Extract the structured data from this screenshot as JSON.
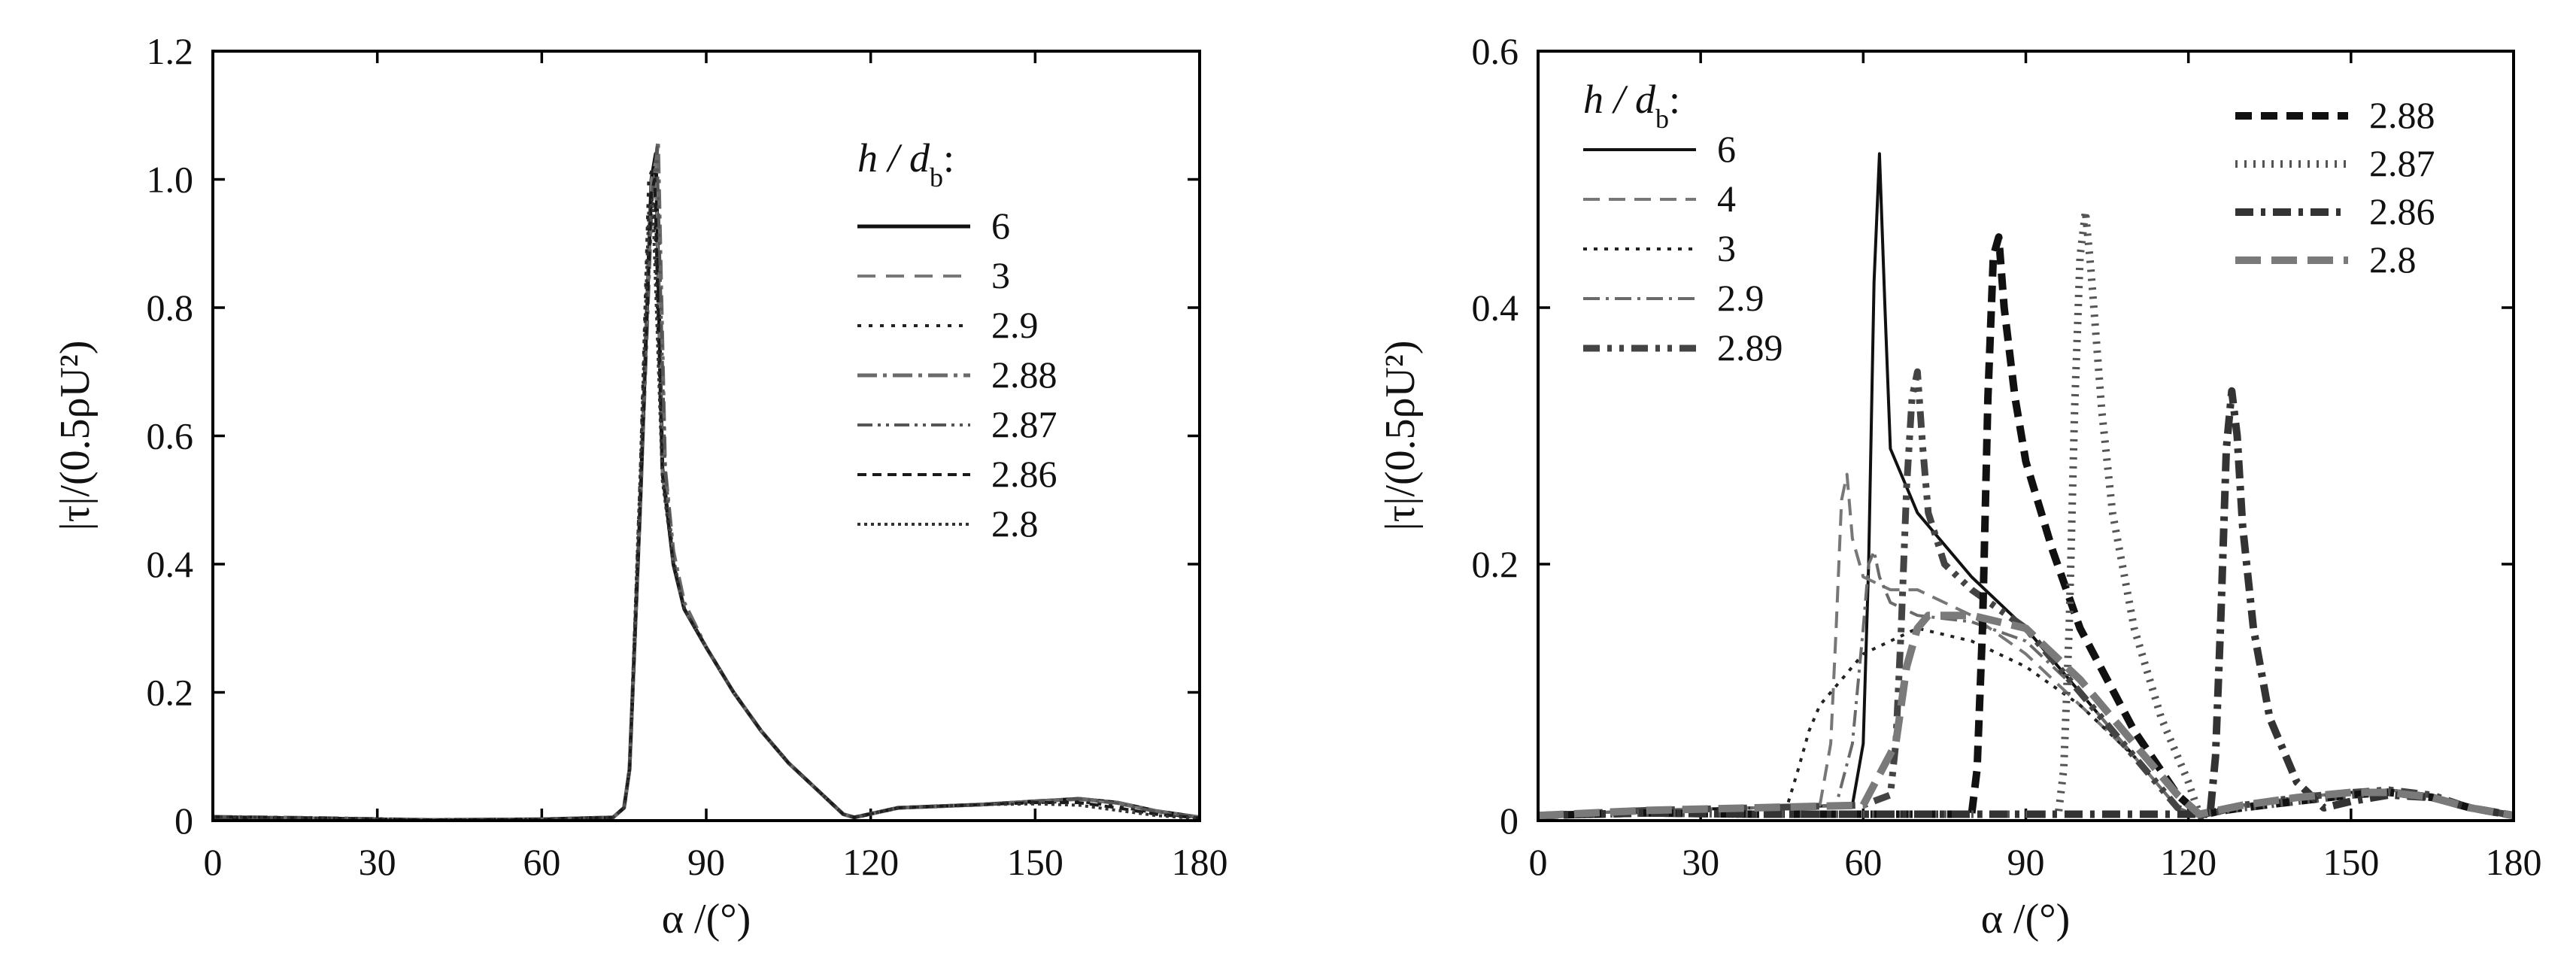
{
  "chart_data": [
    {
      "type": "line",
      "panel": "left",
      "xlabel": "α /(°)",
      "ylabel": "|τ|/(0.5ρU²)",
      "xlim": [
        0,
        180
      ],
      "ylim": [
        0,
        1.2
      ],
      "xticks": [
        0,
        30,
        60,
        90,
        120,
        150,
        180
      ],
      "yticks": [
        0,
        0.2,
        0.4,
        0.6,
        0.8,
        1.0,
        1.2
      ],
      "xtick_labels": [
        "0",
        "30",
        "60",
        "90",
        "120",
        "150",
        "180"
      ],
      "ytick_labels": [
        "0",
        "0.2",
        "0.4",
        "0.6",
        "0.8",
        "1.0",
        "1.2"
      ],
      "legend_title": "h / d",
      "legend_title_sub": "b",
      "legend_title_suffix": ":",
      "legend_position": "right",
      "series": [
        {
          "name": "6",
          "color": "#111111",
          "dash": "",
          "width": 5,
          "x": [
            0,
            20,
            40,
            60,
            73,
            75,
            76,
            78,
            80,
            80.8,
            82,
            84,
            86,
            90,
            95,
            100,
            105,
            110,
            115,
            117,
            125,
            140,
            150,
            158,
            165,
            172,
            180
          ],
          "y": [
            0.005,
            0.003,
            0.001,
            0.002,
            0.005,
            0.02,
            0.08,
            0.5,
            1.0,
            1.04,
            0.55,
            0.4,
            0.33,
            0.27,
            0.2,
            0.14,
            0.09,
            0.05,
            0.01,
            0.005,
            0.02,
            0.025,
            0.03,
            0.034,
            0.028,
            0.015,
            0.005
          ]
        },
        {
          "name": "3",
          "color": "#777777",
          "dash": "24,14",
          "width": 4,
          "x": [
            0,
            20,
            40,
            60,
            73,
            75,
            76,
            78,
            80,
            80.8,
            82,
            84,
            86,
            90,
            95,
            100,
            105,
            110,
            115,
            117,
            125,
            140,
            150,
            158,
            165,
            172,
            180
          ],
          "y": [
            0.006,
            0.004,
            0.001,
            0.002,
            0.005,
            0.02,
            0.08,
            0.52,
            1.0,
            1.03,
            0.54,
            0.4,
            0.33,
            0.27,
            0.2,
            0.14,
            0.09,
            0.05,
            0.01,
            0.005,
            0.02,
            0.025,
            0.03,
            0.033,
            0.027,
            0.014,
            0.005
          ]
        },
        {
          "name": "2.9",
          "color": "#222222",
          "dash": "5,10",
          "width": 4,
          "x": [
            0,
            20,
            40,
            60,
            73,
            75,
            76,
            78,
            79.5,
            80.3,
            82,
            84,
            86,
            90,
            95,
            100,
            105,
            110,
            115,
            117,
            125,
            140,
            150,
            158,
            165,
            172,
            180
          ],
          "y": [
            0.006,
            0.004,
            0.001,
            0.002,
            0.005,
            0.02,
            0.08,
            0.55,
            1.0,
            1.02,
            0.54,
            0.4,
            0.33,
            0.27,
            0.2,
            0.14,
            0.09,
            0.05,
            0.01,
            0.005,
            0.02,
            0.025,
            0.028,
            0.03,
            0.022,
            0.012,
            0.004
          ]
        },
        {
          "name": "2.88",
          "color": "#6a6a6a",
          "dash": "26,8,5,8",
          "width": 5,
          "x": [
            0,
            20,
            40,
            60,
            73,
            75,
            76,
            78,
            80,
            81.2,
            82.5,
            84,
            86,
            90,
            95,
            100,
            105,
            110,
            115,
            117,
            125,
            140,
            150,
            158,
            165,
            172,
            180
          ],
          "y": [
            0.006,
            0.004,
            0.001,
            0.002,
            0.005,
            0.02,
            0.08,
            0.5,
            0.95,
            1.06,
            0.55,
            0.42,
            0.34,
            0.27,
            0.2,
            0.14,
            0.09,
            0.05,
            0.01,
            0.005,
            0.02,
            0.025,
            0.03,
            0.034,
            0.028,
            0.015,
            0.005
          ]
        },
        {
          "name": "2.87",
          "color": "#555555",
          "dash": "20,7,4,7,4,7",
          "width": 4,
          "x": [
            0,
            20,
            40,
            60,
            73,
            75,
            76,
            78,
            80,
            81,
            82.5,
            84,
            86,
            90,
            95,
            100,
            105,
            110,
            115,
            117,
            125,
            140,
            150,
            158,
            165,
            172,
            180
          ],
          "y": [
            0.006,
            0.004,
            0.001,
            0.002,
            0.005,
            0.02,
            0.08,
            0.5,
            0.96,
            1.05,
            0.55,
            0.41,
            0.33,
            0.27,
            0.2,
            0.14,
            0.09,
            0.05,
            0.01,
            0.005,
            0.02,
            0.025,
            0.03,
            0.034,
            0.027,
            0.014,
            0.005
          ]
        },
        {
          "name": "2.86",
          "color": "#1a1a1a",
          "dash": "12,8",
          "width": 4,
          "x": [
            0,
            20,
            40,
            60,
            73,
            75,
            76,
            78,
            80,
            80.6,
            82,
            84,
            86,
            90,
            95,
            100,
            105,
            110,
            115,
            117,
            125,
            140,
            150,
            158,
            165,
            172,
            180
          ],
          "y": [
            0.006,
            0.004,
            0.001,
            0.002,
            0.005,
            0.02,
            0.08,
            0.5,
            0.98,
            1.0,
            0.54,
            0.4,
            0.33,
            0.27,
            0.2,
            0.14,
            0.09,
            0.05,
            0.01,
            0.005,
            0.02,
            0.025,
            0.028,
            0.028,
            0.02,
            0.01,
            0.004
          ]
        },
        {
          "name": "2.8",
          "color": "#333333",
          "dash": "4,5",
          "width": 4,
          "x": [
            0,
            20,
            40,
            60,
            73,
            75,
            76,
            78,
            79.5,
            80.2,
            82,
            84,
            86,
            90,
            95,
            100,
            105,
            110,
            115,
            117,
            125,
            140,
            150,
            158,
            165,
            172,
            180
          ],
          "y": [
            0.006,
            0.004,
            0.001,
            0.002,
            0.005,
            0.02,
            0.08,
            0.55,
            0.95,
            0.97,
            0.53,
            0.4,
            0.33,
            0.27,
            0.2,
            0.14,
            0.09,
            0.05,
            0.01,
            0.005,
            0.02,
            0.025,
            0.026,
            0.024,
            0.016,
            0.008,
            0.003
          ]
        }
      ]
    },
    {
      "type": "line",
      "panel": "right",
      "xlabel": "α /(°)",
      "ylabel": "|τ|/(0.5ρU²)",
      "xlim": [
        0,
        180
      ],
      "ylim": [
        0,
        0.6
      ],
      "xticks": [
        0,
        30,
        60,
        90,
        120,
        150,
        180
      ],
      "yticks": [
        0,
        0.2,
        0.4,
        0.6
      ],
      "xtick_labels": [
        "0",
        "30",
        "60",
        "90",
        "120",
        "150",
        "180"
      ],
      "ytick_labels": [
        "0",
        "0.2",
        "0.4",
        "0.6"
      ],
      "legend_title": "h / d",
      "legend_title_sub": "b",
      "legend_title_suffix": ":",
      "legend_position": "top-left and top-right",
      "series": [
        {
          "name": "6",
          "color": "#111111",
          "dash": "",
          "width": 4,
          "x": [
            0,
            20,
            40,
            58,
            60,
            61,
            62,
            63,
            64,
            65,
            70,
            80,
            90,
            100,
            110,
            118,
            122,
            130,
            140,
            150,
            157,
            165,
            172,
            180
          ],
          "y": [
            0.004,
            0.008,
            0.01,
            0.012,
            0.06,
            0.2,
            0.42,
            0.52,
            0.4,
            0.29,
            0.24,
            0.19,
            0.15,
            0.1,
            0.05,
            0.01,
            0.003,
            0.012,
            0.018,
            0.022,
            0.024,
            0.02,
            0.01,
            0.004
          ]
        },
        {
          "name": "4",
          "color": "#777777",
          "dash": "22,12",
          "width": 4,
          "x": [
            0,
            20,
            40,
            52,
            54,
            55,
            56,
            57,
            58,
            60,
            65,
            70,
            80,
            90,
            100,
            110,
            118,
            122,
            130,
            140,
            150,
            157,
            165,
            172,
            180
          ],
          "y": [
            0.004,
            0.008,
            0.01,
            0.012,
            0.06,
            0.15,
            0.25,
            0.27,
            0.22,
            0.19,
            0.18,
            0.18,
            0.16,
            0.13,
            0.09,
            0.05,
            0.01,
            0.003,
            0.012,
            0.018,
            0.022,
            0.024,
            0.02,
            0.01,
            0.004
          ]
        },
        {
          "name": "3",
          "color": "#222222",
          "dash": "5,9",
          "width": 4,
          "x": [
            0,
            20,
            40,
            46,
            48,
            50,
            52,
            54,
            56,
            60,
            65,
            70,
            80,
            90,
            100,
            110,
            118,
            122,
            130,
            140,
            150,
            157,
            165,
            172,
            180
          ],
          "y": [
            0.004,
            0.008,
            0.01,
            0.012,
            0.04,
            0.07,
            0.09,
            0.1,
            0.11,
            0.13,
            0.14,
            0.15,
            0.14,
            0.12,
            0.09,
            0.05,
            0.01,
            0.003,
            0.012,
            0.018,
            0.022,
            0.022,
            0.018,
            0.01,
            0.004
          ]
        },
        {
          "name": "2.9",
          "color": "#6a6a6a",
          "dash": "22,8,4,8",
          "width": 4,
          "x": [
            0,
            20,
            40,
            55,
            58,
            60,
            61,
            62,
            63,
            65,
            70,
            80,
            90,
            100,
            110,
            118,
            122,
            130,
            140,
            150,
            157,
            165,
            172,
            180
          ],
          "y": [
            0.004,
            0.008,
            0.01,
            0.012,
            0.06,
            0.15,
            0.2,
            0.21,
            0.19,
            0.17,
            0.16,
            0.155,
            0.14,
            0.1,
            0.05,
            0.01,
            0.003,
            0.012,
            0.018,
            0.022,
            0.024,
            0.02,
            0.01,
            0.004
          ]
        },
        {
          "name": "2.89",
          "color": "#444444",
          "dash": "22,10,6,10,6,10",
          "width": 9,
          "x": [
            0,
            20,
            40,
            60,
            65,
            66,
            67,
            68,
            69,
            70,
            71,
            72,
            75,
            80,
            90,
            100,
            110,
            118,
            122,
            130,
            140,
            150,
            157,
            165,
            172,
            180
          ],
          "y": [
            0.004,
            0.008,
            0.01,
            0.012,
            0.02,
            0.06,
            0.15,
            0.26,
            0.33,
            0.35,
            0.29,
            0.24,
            0.2,
            0.18,
            0.15,
            0.1,
            0.05,
            0.01,
            0.003,
            0.012,
            0.018,
            0.022,
            0.024,
            0.02,
            0.01,
            0.004
          ]
        },
        {
          "name": "2.88",
          "color": "#111111",
          "dash": "22,12",
          "width": 10,
          "x": [
            0,
            20,
            40,
            60,
            80,
            81,
            82,
            83,
            84,
            85,
            86,
            88,
            90,
            95,
            100,
            110,
            118,
            122,
            130,
            140,
            150,
            157,
            165,
            172,
            180
          ],
          "y": [
            0.004,
            0.006,
            0.005,
            0.005,
            0.005,
            0.04,
            0.15,
            0.33,
            0.44,
            0.455,
            0.4,
            0.33,
            0.28,
            0.21,
            0.15,
            0.07,
            0.02,
            0.005,
            0.01,
            0.015,
            0.02,
            0.022,
            0.018,
            0.01,
            0.004
          ]
        },
        {
          "name": "2.87",
          "color": "#555555",
          "dash": "3,9",
          "width": 10,
          "x": [
            0,
            20,
            40,
            60,
            80,
            96,
            97,
            98,
            99,
            100,
            101,
            102,
            104,
            106,
            110,
            115,
            120,
            122,
            130,
            140,
            150,
            157,
            165,
            172,
            180
          ],
          "y": [
            0.004,
            0.006,
            0.005,
            0.005,
            0.005,
            0.005,
            0.04,
            0.15,
            0.32,
            0.44,
            0.475,
            0.43,
            0.32,
            0.24,
            0.15,
            0.08,
            0.03,
            0.005,
            0.01,
            0.015,
            0.02,
            0.022,
            0.018,
            0.01,
            0.004
          ]
        },
        {
          "name": "2.86",
          "color": "#333333",
          "dash": "24,10,6,10",
          "width": 10,
          "x": [
            0,
            20,
            40,
            60,
            80,
            100,
            120,
            124,
            125,
            126,
            127,
            128,
            129,
            130,
            132,
            135,
            140,
            145,
            150,
            157,
            165,
            172,
            180
          ],
          "y": [
            0.004,
            0.006,
            0.005,
            0.005,
            0.005,
            0.005,
            0.005,
            0.005,
            0.05,
            0.16,
            0.29,
            0.335,
            0.3,
            0.23,
            0.15,
            0.08,
            0.03,
            0.01,
            0.015,
            0.02,
            0.018,
            0.01,
            0.004
          ]
        },
        {
          "name": "2.8",
          "color": "#7a7a7a",
          "dash": "34,14",
          "width": 10,
          "x": [
            0,
            20,
            40,
            60,
            66,
            68,
            70,
            72,
            75,
            80,
            90,
            100,
            110,
            118,
            122,
            130,
            140,
            150,
            157,
            165,
            172,
            180
          ],
          "y": [
            0.004,
            0.008,
            0.01,
            0.012,
            0.06,
            0.12,
            0.15,
            0.16,
            0.16,
            0.16,
            0.15,
            0.11,
            0.06,
            0.02,
            0.005,
            0.012,
            0.018,
            0.022,
            0.022,
            0.018,
            0.01,
            0.004
          ]
        }
      ],
      "legend_left": [
        "6",
        "4",
        "3",
        "2.9",
        "2.89"
      ],
      "legend_right": [
        "2.88",
        "2.87",
        "2.86",
        "2.8"
      ]
    }
  ]
}
